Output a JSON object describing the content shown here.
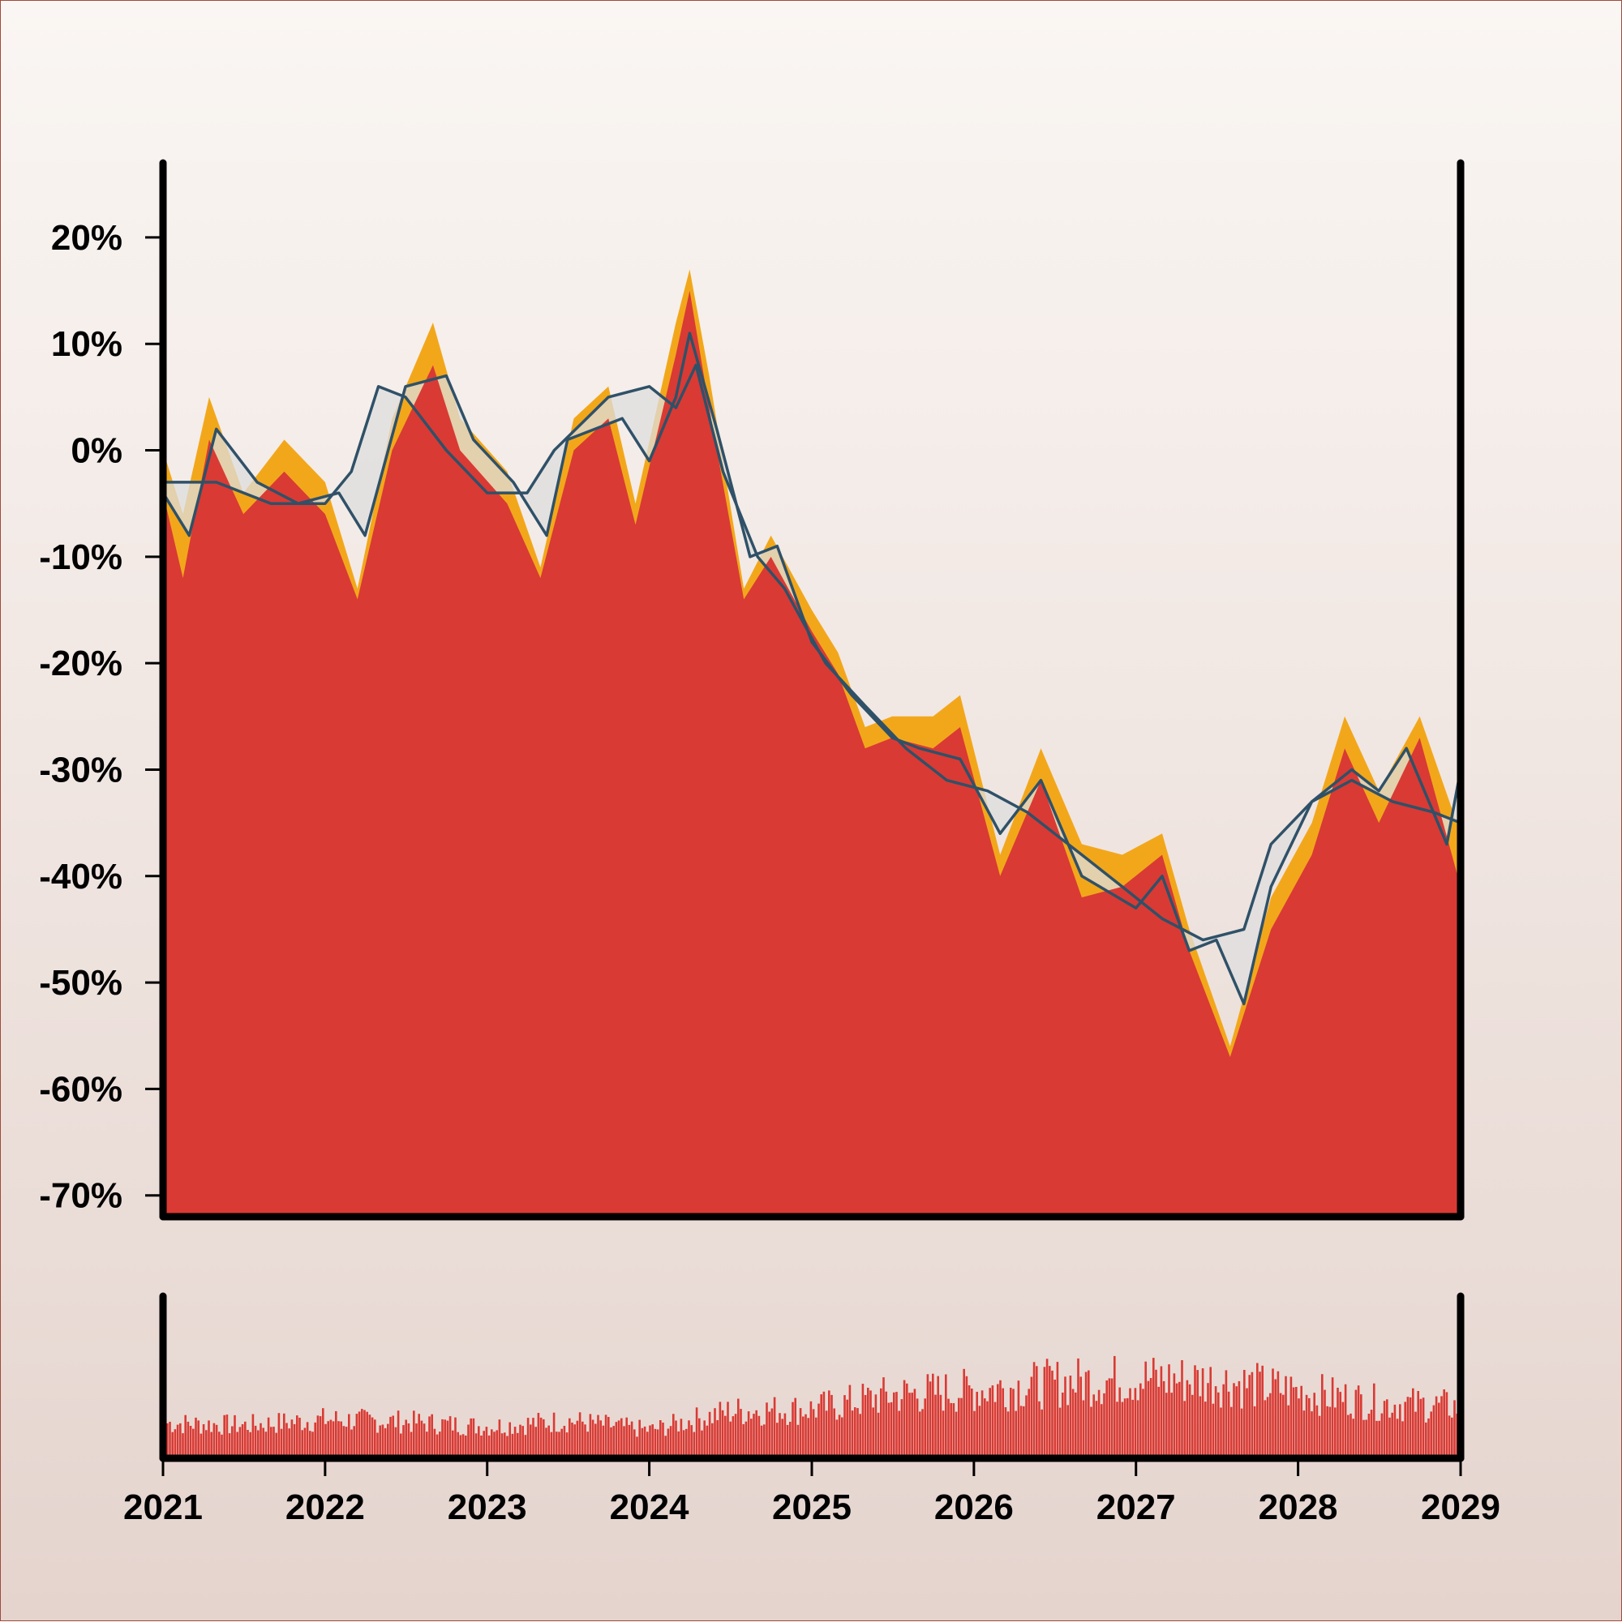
{
  "chart_data": {
    "type": "area",
    "xlim": [
      "2021-01-01",
      "2029-01-01"
    ],
    "ylim": [
      -72,
      27
    ],
    "y_ticks": [
      {
        "value": 20,
        "label": "20%"
      },
      {
        "value": 10,
        "label": "10%"
      },
      {
        "value": 0,
        "label": "0%"
      },
      {
        "value": -10,
        "label": "-10%"
      },
      {
        "value": -20,
        "label": "-20%"
      },
      {
        "value": -30,
        "label": "-30%"
      },
      {
        "value": -40,
        "label": "-40%"
      },
      {
        "value": -50,
        "label": "-50%"
      },
      {
        "value": -60,
        "label": "-60%"
      },
      {
        "value": -70,
        "label": "-70%"
      }
    ],
    "x_ticks": [
      {
        "value": "2021-01-01",
        "label": "2021"
      },
      {
        "value": "2022-01-01",
        "label": "2022"
      },
      {
        "value": "2023-01-01",
        "label": "2023"
      },
      {
        "value": "2024-01-01",
        "label": "2024"
      },
      {
        "value": "2025-01-01",
        "label": "2025"
      },
      {
        "value": "2026-01-01",
        "label": "2026"
      },
      {
        "value": "2027-01-01",
        "label": "2027"
      },
      {
        "value": "2028-01-01",
        "label": "2028"
      },
      {
        "value": "2029-01-01",
        "label": "2029"
      }
    ],
    "grid": false,
    "legend": "none",
    "colors": {
      "area": "#d93a34",
      "envelope": "#f2a71b",
      "band_fill": "#dedede",
      "lines": "#2f5168",
      "axis": "#000000"
    },
    "series": [
      {
        "role": "upper-envelope",
        "points": [
          [
            "2021-01-01",
            0
          ],
          [
            "2021-02-15",
            -6
          ],
          [
            "2021-04-15",
            5
          ],
          [
            "2021-07-01",
            -4
          ],
          [
            "2021-10-01",
            1
          ],
          [
            "2022-01-01",
            -3
          ],
          [
            "2022-03-15",
            -13
          ],
          [
            "2022-06-01",
            3
          ],
          [
            "2022-09-01",
            12
          ],
          [
            "2022-11-01",
            3
          ],
          [
            "2023-02-15",
            -2
          ],
          [
            "2023-05-01",
            -11
          ],
          [
            "2023-07-15",
            3
          ],
          [
            "2023-10-01",
            6
          ],
          [
            "2023-12-01",
            -5
          ],
          [
            "2024-03-01",
            12
          ],
          [
            "2024-04-01",
            17
          ],
          [
            "2024-05-15",
            7
          ],
          [
            "2024-08-01",
            -13
          ],
          [
            "2024-10-01",
            -8
          ],
          [
            "2025-01-01",
            -15
          ],
          [
            "2025-03-01",
            -19
          ],
          [
            "2025-05-01",
            -26
          ],
          [
            "2025-07-01",
            -25
          ],
          [
            "2025-10-01",
            -25
          ],
          [
            "2025-12-01",
            -23
          ],
          [
            "2026-03-01",
            -38
          ],
          [
            "2026-06-01",
            -28
          ],
          [
            "2026-09-01",
            -37
          ],
          [
            "2026-12-01",
            -38
          ],
          [
            "2027-03-01",
            -36
          ],
          [
            "2027-05-01",
            -45
          ],
          [
            "2027-08-01",
            -56
          ],
          [
            "2027-11-01",
            -42
          ],
          [
            "2028-02-01",
            -35
          ],
          [
            "2028-04-15",
            -25
          ],
          [
            "2028-07-01",
            -32
          ],
          [
            "2028-10-01",
            -25
          ],
          [
            "2029-01-01",
            -36
          ]
        ]
      },
      {
        "role": "area",
        "points": [
          [
            "2021-01-01",
            -4
          ],
          [
            "2021-02-15",
            -12
          ],
          [
            "2021-04-15",
            1
          ],
          [
            "2021-07-01",
            -6
          ],
          [
            "2021-10-01",
            -2
          ],
          [
            "2022-01-01",
            -6
          ],
          [
            "2022-03-15",
            -14
          ],
          [
            "2022-06-01",
            0
          ],
          [
            "2022-09-01",
            8
          ],
          [
            "2022-11-01",
            0
          ],
          [
            "2023-02-15",
            -5
          ],
          [
            "2023-05-01",
            -12
          ],
          [
            "2023-07-15",
            0
          ],
          [
            "2023-10-01",
            3
          ],
          [
            "2023-12-01",
            -7
          ],
          [
            "2024-03-01",
            9
          ],
          [
            "2024-04-01",
            15
          ],
          [
            "2024-05-15",
            4
          ],
          [
            "2024-08-01",
            -14
          ],
          [
            "2024-10-01",
            -10
          ],
          [
            "2025-01-01",
            -17
          ],
          [
            "2025-03-01",
            -21
          ],
          [
            "2025-05-01",
            -28
          ],
          [
            "2025-07-01",
            -27
          ],
          [
            "2025-10-01",
            -28
          ],
          [
            "2025-12-01",
            -26
          ],
          [
            "2026-03-01",
            -40
          ],
          [
            "2026-06-01",
            -31
          ],
          [
            "2026-09-01",
            -42
          ],
          [
            "2026-12-01",
            -41
          ],
          [
            "2027-03-01",
            -38
          ],
          [
            "2027-05-01",
            -47
          ],
          [
            "2027-08-01",
            -57
          ],
          [
            "2027-11-01",
            -45
          ],
          [
            "2028-02-01",
            -38
          ],
          [
            "2028-04-15",
            -28
          ],
          [
            "2028-07-01",
            -35
          ],
          [
            "2028-10-01",
            -27
          ],
          [
            "2029-01-01",
            -41
          ]
        ]
      },
      {
        "role": "line-fast",
        "points": [
          [
            "2021-01-01",
            -4
          ],
          [
            "2021-03-01",
            -8
          ],
          [
            "2021-05-01",
            2
          ],
          [
            "2021-08-01",
            -3
          ],
          [
            "2021-11-01",
            -5
          ],
          [
            "2022-02-01",
            -4
          ],
          [
            "2022-04-01",
            -8
          ],
          [
            "2022-07-01",
            6
          ],
          [
            "2022-10-01",
            7
          ],
          [
            "2022-12-01",
            1
          ],
          [
            "2023-03-01",
            -3
          ],
          [
            "2023-05-15",
            -8
          ],
          [
            "2023-07-01",
            1
          ],
          [
            "2023-11-01",
            3
          ],
          [
            "2024-01-01",
            -1
          ],
          [
            "2024-03-01",
            5
          ],
          [
            "2024-04-01",
            11
          ],
          [
            "2024-06-01",
            2
          ],
          [
            "2024-08-15",
            -10
          ],
          [
            "2024-10-15",
            -9
          ],
          [
            "2025-01-01",
            -18
          ],
          [
            "2025-04-01",
            -23
          ],
          [
            "2025-07-01",
            -27
          ],
          [
            "2025-09-01",
            -28
          ],
          [
            "2025-12-01",
            -29
          ],
          [
            "2026-03-01",
            -36
          ],
          [
            "2026-06-01",
            -31
          ],
          [
            "2026-09-01",
            -40
          ],
          [
            "2027-01-01",
            -43
          ],
          [
            "2027-03-01",
            -40
          ],
          [
            "2027-05-01",
            -47
          ],
          [
            "2027-07-01",
            -46
          ],
          [
            "2027-09-01",
            -52
          ],
          [
            "2027-11-01",
            -41
          ],
          [
            "2028-02-01",
            -33
          ],
          [
            "2028-05-01",
            -30
          ],
          [
            "2028-07-01",
            -32
          ],
          [
            "2028-09-01",
            -28
          ],
          [
            "2028-12-01",
            -37
          ],
          [
            "2029-01-01",
            -30
          ]
        ]
      },
      {
        "role": "line-slow",
        "points": [
          [
            "2021-01-01",
            -3
          ],
          [
            "2021-05-01",
            -3
          ],
          [
            "2021-09-01",
            -5
          ],
          [
            "2022-01-01",
            -5
          ],
          [
            "2022-03-01",
            -2
          ],
          [
            "2022-05-01",
            6
          ],
          [
            "2022-07-01",
            5
          ],
          [
            "2022-10-01",
            0
          ],
          [
            "2023-01-01",
            -4
          ],
          [
            "2023-04-01",
            -4
          ],
          [
            "2023-06-01",
            0
          ],
          [
            "2023-10-01",
            5
          ],
          [
            "2024-01-01",
            6
          ],
          [
            "2024-03-01",
            4
          ],
          [
            "2024-04-15",
            8
          ],
          [
            "2024-06-15",
            -2
          ],
          [
            "2024-09-01",
            -10
          ],
          [
            "2024-11-01",
            -13
          ],
          [
            "2025-02-01",
            -20
          ],
          [
            "2025-05-01",
            -24
          ],
          [
            "2025-08-01",
            -28
          ],
          [
            "2025-11-01",
            -31
          ],
          [
            "2026-02-01",
            -32
          ],
          [
            "2026-05-01",
            -34
          ],
          [
            "2026-09-01",
            -38
          ],
          [
            "2026-12-01",
            -41
          ],
          [
            "2027-03-01",
            -44
          ],
          [
            "2027-06-01",
            -46
          ],
          [
            "2027-09-01",
            -45
          ],
          [
            "2027-11-01",
            -37
          ],
          [
            "2028-02-01",
            -33
          ],
          [
            "2028-05-01",
            -31
          ],
          [
            "2028-08-01",
            -33
          ],
          [
            "2028-11-01",
            -34
          ],
          [
            "2029-01-01",
            -35
          ]
        ]
      },
      {
        "role": "volume",
        "points": [
          [
            "2021-01-01",
            0.28
          ],
          [
            "2021-07-01",
            0.26
          ],
          [
            "2022-01-01",
            0.31
          ],
          [
            "2022-07-01",
            0.29
          ],
          [
            "2023-01-01",
            0.25
          ],
          [
            "2023-07-01",
            0.3
          ],
          [
            "2024-01-01",
            0.22
          ],
          [
            "2024-07-01",
            0.38
          ],
          [
            "2025-01-01",
            0.4
          ],
          [
            "2025-07-01",
            0.52
          ],
          [
            "2026-01-01",
            0.56
          ],
          [
            "2026-07-01",
            0.62
          ],
          [
            "2027-01-01",
            0.66
          ],
          [
            "2027-07-01",
            0.64
          ],
          [
            "2028-01-01",
            0.55
          ],
          [
            "2028-07-01",
            0.45
          ],
          [
            "2029-01-01",
            0.42
          ]
        ]
      }
    ]
  }
}
